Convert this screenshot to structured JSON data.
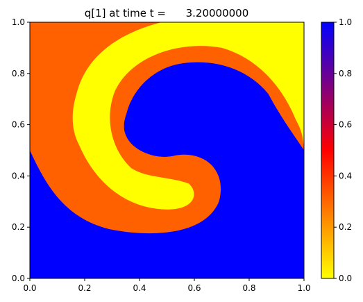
{
  "chart_data": {
    "type": "heatmap",
    "title": "q[1] at time t =      3.20000000",
    "xlim": [
      0.0,
      1.0
    ],
    "ylim": [
      0.0,
      1.0
    ],
    "xticks": [
      "0.0",
      "0.2",
      "0.4",
      "0.6",
      "0.8",
      "1.0"
    ],
    "yticks": [
      "0.0",
      "0.2",
      "0.4",
      "0.6",
      "0.8",
      "1.0"
    ],
    "colorbar": {
      "range": [
        0.0,
        1.0
      ],
      "ticks": [
        "0.0",
        "0.2",
        "0.4",
        "0.6",
        "0.8",
        "1.0"
      ],
      "colormap": [
        {
          "value": 0.0,
          "color": "#ffff00"
        },
        {
          "value": 0.25,
          "color": "#ff8000"
        },
        {
          "value": 0.5,
          "color": "#ff0000"
        },
        {
          "value": 1.0,
          "color": "#0000ff"
        }
      ]
    },
    "field_regions": [
      {
        "name": "lower region",
        "value": 1.0,
        "color": "#0000ff"
      },
      {
        "name": "outer swirl arm",
        "value": 0.25,
        "color": "#ff6000"
      },
      {
        "name": "inner swirl arm",
        "value": 0.0,
        "color": "#ffff00"
      },
      {
        "name": "swirl core",
        "value": 1.0,
        "color": "#0000ff"
      }
    ],
    "grid": false
  }
}
